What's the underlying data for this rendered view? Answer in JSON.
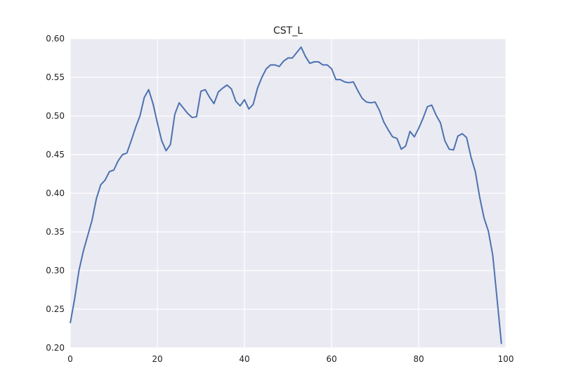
{
  "chart_data": {
    "type": "line",
    "title": "CST_L",
    "xlabel": "",
    "ylabel": "",
    "xlim": [
      0,
      100
    ],
    "ylim": [
      0.2,
      0.6
    ],
    "x_ticks": [
      "0",
      "20",
      "40",
      "60",
      "80",
      "100"
    ],
    "y_ticks": [
      "0.20",
      "0.25",
      "0.30",
      "0.35",
      "0.40",
      "0.45",
      "0.50",
      "0.55",
      "0.60"
    ],
    "grid": true,
    "background_color": "#EAEAF2",
    "grid_color": "#FFFFFF",
    "series": [
      {
        "color": "#4C72B0",
        "x": [
          0,
          1,
          2,
          3,
          4,
          5,
          6,
          7,
          8,
          9,
          10,
          11,
          12,
          13,
          14,
          15,
          16,
          17,
          18,
          19,
          20,
          21,
          22,
          23,
          24,
          25,
          26,
          27,
          28,
          29,
          30,
          31,
          32,
          33,
          34,
          35,
          36,
          37,
          38,
          39,
          40,
          41,
          42,
          43,
          44,
          45,
          46,
          47,
          48,
          49,
          50,
          51,
          52,
          53,
          54,
          55,
          56,
          57,
          58,
          59,
          60,
          61,
          62,
          63,
          64,
          65,
          66,
          67,
          68,
          69,
          70,
          71,
          72,
          73,
          74,
          75,
          76,
          77,
          78,
          79,
          80,
          81,
          82,
          83,
          84,
          85,
          86,
          87,
          88,
          89,
          90,
          91,
          92,
          93,
          94,
          95,
          96,
          97,
          98,
          99
        ],
        "values": [
          0.232,
          0.263,
          0.3,
          0.325,
          0.345,
          0.365,
          0.393,
          0.411,
          0.417,
          0.428,
          0.43,
          0.442,
          0.45,
          0.452,
          0.468,
          0.485,
          0.5,
          0.524,
          0.534,
          0.516,
          0.491,
          0.468,
          0.455,
          0.463,
          0.502,
          0.517,
          0.51,
          0.503,
          0.498,
          0.499,
          0.532,
          0.534,
          0.524,
          0.516,
          0.531,
          0.536,
          0.54,
          0.535,
          0.519,
          0.513,
          0.521,
          0.509,
          0.515,
          0.536,
          0.55,
          0.561,
          0.566,
          0.566,
          0.564,
          0.571,
          0.575,
          0.575,
          0.582,
          0.589,
          0.577,
          0.568,
          0.57,
          0.57,
          0.566,
          0.566,
          0.561,
          0.547,
          0.547,
          0.544,
          0.543,
          0.544,
          0.533,
          0.523,
          0.518,
          0.517,
          0.518,
          0.507,
          0.492,
          0.482,
          0.473,
          0.471,
          0.457,
          0.461,
          0.48,
          0.473,
          0.484,
          0.497,
          0.512,
          0.514,
          0.501,
          0.491,
          0.468,
          0.457,
          0.456,
          0.474,
          0.477,
          0.472,
          0.447,
          0.428,
          0.395,
          0.368,
          0.351,
          0.32,
          0.263,
          0.205
        ]
      }
    ]
  }
}
